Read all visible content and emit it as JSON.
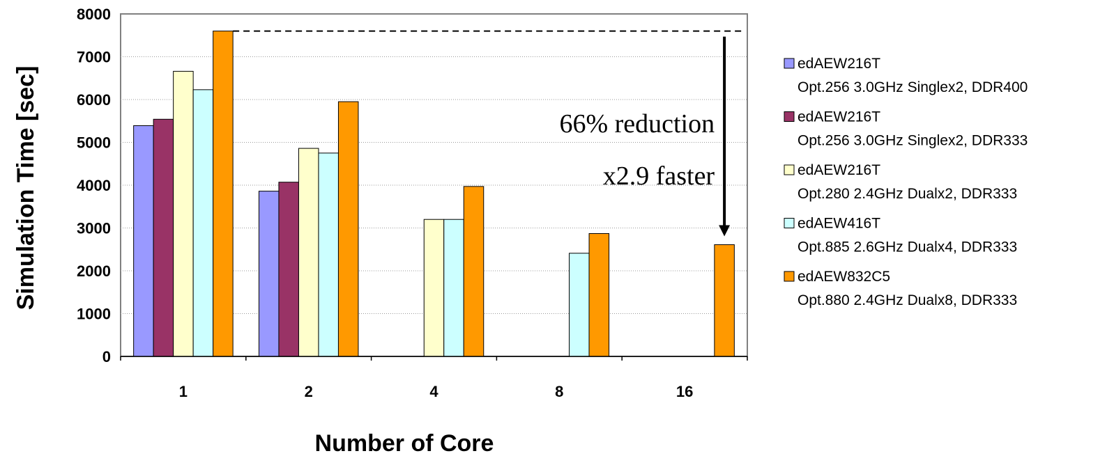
{
  "chart_data": {
    "type": "bar",
    "title": "",
    "xlabel": "Number of Core",
    "ylabel": "Simulation Time [sec]",
    "ylim": [
      0,
      8000
    ],
    "yticks": [
      0,
      1000,
      2000,
      3000,
      4000,
      5000,
      6000,
      7000,
      8000
    ],
    "categories": [
      "1",
      "2",
      "4",
      "8",
      "16"
    ],
    "grid": true,
    "legend_position": "right",
    "series": [
      {
        "name": "edAEW216T",
        "detail": "Opt.256 3.0GHz Singlex2, DDR400",
        "color": "#9999ff",
        "values": [
          5390,
          3860,
          null,
          null,
          null
        ]
      },
      {
        "name": "edAEW216T",
        "detail": "Opt.256 3.0GHz Singlex2, DDR333",
        "color": "#993366",
        "values": [
          5540,
          4070,
          null,
          null,
          null
        ]
      },
      {
        "name": "edAEW216T",
        "detail": "Opt.280 2.4GHz Dualx2, DDR333",
        "color": "#ffffcc",
        "values": [
          6660,
          4860,
          3200,
          null,
          null
        ]
      },
      {
        "name": "edAEW416T",
        "detail": "Opt.885 2.6GHz Dualx4, DDR333",
        "color": "#ccffff",
        "values": [
          6230,
          4750,
          3200,
          2410,
          null
        ]
      },
      {
        "name": "edAEW832C5",
        "detail": "Opt.880 2.4GHz Dualx8, DDR333",
        "color": "#ff9900",
        "values": [
          7600,
          5950,
          3970,
          2870,
          2610
        ]
      }
    ],
    "annotation": {
      "line1": "66% reduction",
      "line2": "x2.9 faster",
      "from_value": 7600,
      "to_value": 2610
    }
  }
}
